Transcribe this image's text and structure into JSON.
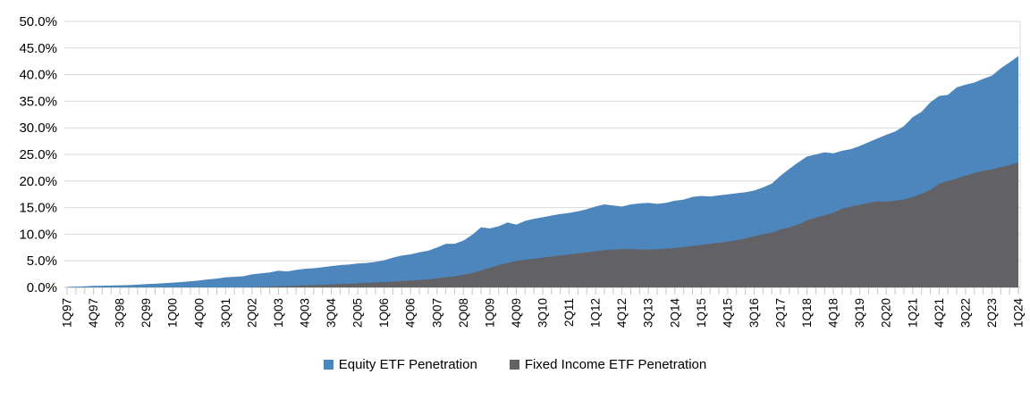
{
  "chart_data": {
    "type": "area",
    "title": "",
    "xlabel": "",
    "ylabel": "",
    "ylim": [
      0,
      50
    ],
    "y_tick_step": 5,
    "y_tick_labels": [
      "0.0%",
      "5.0%",
      "10.0%",
      "15.0%",
      "20.0%",
      "25.0%",
      "30.0%",
      "35.0%",
      "40.0%",
      "45.0%",
      "50.0%"
    ],
    "x_count": 109,
    "x_label_every": 3,
    "x_tick_labels": [
      "1Q97",
      "4Q97",
      "3Q98",
      "2Q99",
      "1Q00",
      "4Q00",
      "3Q01",
      "2Q02",
      "1Q03",
      "4Q03",
      "3Q04",
      "2Q05",
      "1Q06",
      "4Q06",
      "3Q07",
      "2Q08",
      "1Q09",
      "4Q09",
      "3Q10",
      "2Q11",
      "1Q12",
      "4Q12",
      "3Q13",
      "2Q14",
      "1Q15",
      "4Q15",
      "3Q16",
      "2Q17",
      "1Q18",
      "4Q18",
      "3Q19",
      "2Q20",
      "1Q21",
      "4Q21",
      "3Q22",
      "2Q23",
      "1Q24"
    ],
    "grid": "horizontal",
    "legend_position": "bottom-center",
    "layering": "overlapping areas, fixed income drawn in front of equity (not stacked)",
    "series": [
      {
        "name": "Equity ETF Penetration",
        "color": "#4D86BC",
        "values": [
          0.1,
          0.15,
          0.22,
          0.3,
          0.32,
          0.36,
          0.4,
          0.45,
          0.52,
          0.62,
          0.7,
          0.8,
          0.9,
          1.0,
          1.15,
          1.3,
          1.5,
          1.65,
          1.9,
          2.0,
          2.1,
          2.45,
          2.65,
          2.8,
          3.15,
          3.0,
          3.3,
          3.5,
          3.6,
          3.8,
          4.0,
          4.2,
          4.3,
          4.5,
          4.6,
          4.8,
          5.1,
          5.6,
          6.0,
          6.2,
          6.6,
          6.9,
          7.5,
          8.2,
          8.2,
          8.8,
          9.9,
          11.3,
          11.1,
          11.5,
          12.2,
          11.8,
          12.5,
          12.9,
          13.2,
          13.5,
          13.8,
          14.0,
          14.3,
          14.7,
          15.2,
          15.6,
          15.4,
          15.2,
          15.6,
          15.8,
          15.9,
          15.7,
          15.9,
          16.3,
          16.5,
          17.0,
          17.2,
          17.1,
          17.3,
          17.5,
          17.7,
          17.9,
          18.2,
          18.8,
          19.5,
          21.0,
          22.3,
          23.5,
          24.6,
          25.0,
          25.4,
          25.2,
          25.7,
          26.0,
          26.6,
          27.3,
          28.0,
          28.7,
          29.3,
          30.3,
          32.0,
          33.0,
          34.8,
          36.0,
          36.2,
          37.6,
          38.1,
          38.5,
          39.2,
          39.8,
          41.2,
          42.3,
          43.5
        ]
      },
      {
        "name": "Fixed Income ETF Penetration",
        "color": "#626266",
        "values": [
          0,
          0,
          0,
          0,
          0,
          0,
          0,
          0,
          0,
          0,
          0,
          0,
          0,
          0,
          0,
          0,
          0,
          0,
          0,
          0,
          0,
          0.05,
          0.1,
          0.15,
          0.2,
          0.25,
          0.3,
          0.4,
          0.45,
          0.5,
          0.55,
          0.65,
          0.7,
          0.8,
          0.85,
          0.95,
          1.0,
          1.1,
          1.2,
          1.3,
          1.4,
          1.5,
          1.7,
          1.9,
          2.1,
          2.4,
          2.7,
          3.2,
          3.7,
          4.2,
          4.6,
          5.0,
          5.2,
          5.4,
          5.6,
          5.8,
          6.0,
          6.2,
          6.4,
          6.6,
          6.8,
          7.0,
          7.1,
          7.2,
          7.2,
          7.1,
          7.1,
          7.2,
          7.3,
          7.4,
          7.6,
          7.8,
          8.0,
          8.2,
          8.4,
          8.6,
          8.9,
          9.2,
          9.6,
          10.0,
          10.3,
          10.9,
          11.3,
          11.8,
          12.6,
          13.1,
          13.6,
          14.0,
          14.8,
          15.2,
          15.5,
          15.9,
          16.2,
          16.1,
          16.3,
          16.5,
          17.0,
          17.6,
          18.3,
          19.5,
          20.0,
          20.5,
          21.0,
          21.5,
          21.9,
          22.2,
          22.6,
          23.0,
          23.5
        ]
      }
    ],
    "colors": {
      "gridline": "#D9D9D9",
      "axis": "#C6C6C6",
      "text": "#000000",
      "background": "#FFFFFF"
    }
  }
}
